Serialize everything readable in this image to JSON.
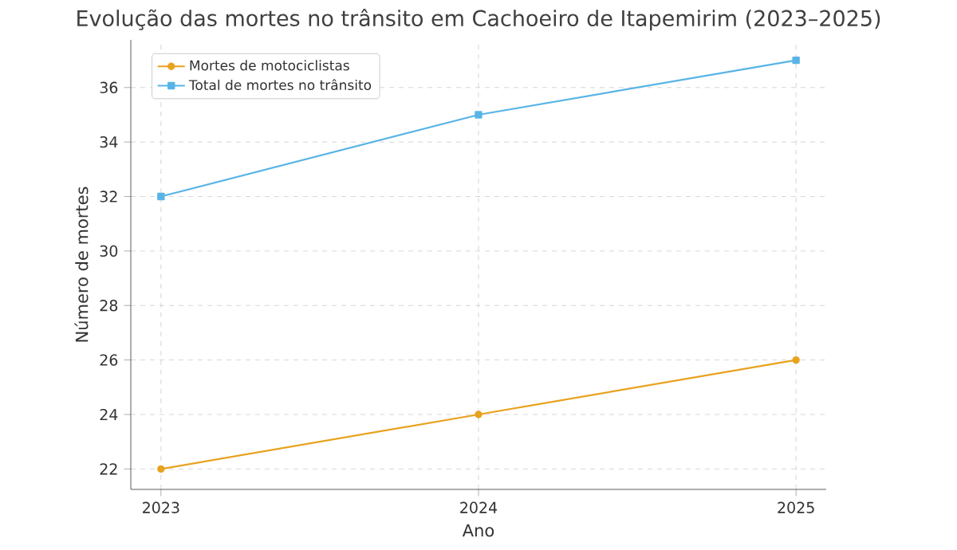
{
  "chart_data": {
    "type": "line",
    "title": "Evolução das mortes no trânsito em Cachoeiro de Itapemirim (2023–2025)",
    "xlabel": "Ano",
    "ylabel": "Número de mortes",
    "x": [
      2023,
      2024,
      2025
    ],
    "series": [
      {
        "name": "Mortes de motociclistas",
        "color": "#e8a21e",
        "values": [
          22,
          24,
          26
        ],
        "marker": "circle"
      },
      {
        "name": "Total de mortes no trânsito",
        "color": "#58b4e6",
        "values": [
          32,
          35,
          37
        ],
        "marker": "square"
      }
    ],
    "xlim": [
      2022.905,
      2025.095
    ],
    "xticks": [
      2023,
      2024,
      2025
    ],
    "ylim": [
      21.25,
      37.75
    ],
    "yticks": [
      22,
      24,
      26,
      28,
      30,
      32,
      34,
      36
    ],
    "grid": true,
    "legend": "top left",
    "line_style": "solid"
  }
}
